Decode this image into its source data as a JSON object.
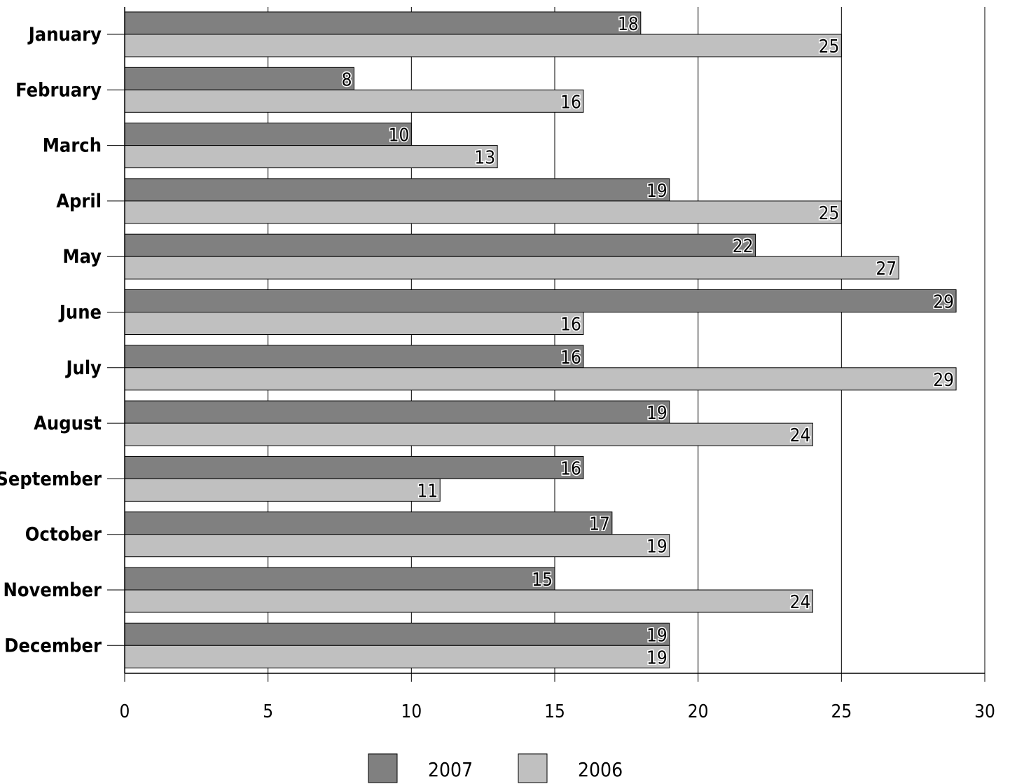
{
  "chart_data": {
    "type": "bar",
    "orientation": "horizontal",
    "categories": [
      "January",
      "February",
      "March",
      "April",
      "May",
      "June",
      "July",
      "August",
      "September",
      "October",
      "November",
      "December"
    ],
    "series": [
      {
        "name": "2007",
        "color": "#808080",
        "values": [
          18,
          8,
          10,
          19,
          22,
          29,
          16,
          19,
          16,
          17,
          15,
          19
        ]
      },
      {
        "name": "2006",
        "color": "#c0c0c0",
        "values": [
          25,
          16,
          13,
          25,
          27,
          16,
          29,
          24,
          11,
          19,
          24,
          19
        ]
      }
    ],
    "x_ticks": [
      "0",
      "5",
      "10",
      "15",
      "20",
      "25",
      "30"
    ],
    "xlim": [
      0,
      30
    ],
    "grid": true,
    "legend_position": "bottom",
    "data_labels": true
  }
}
